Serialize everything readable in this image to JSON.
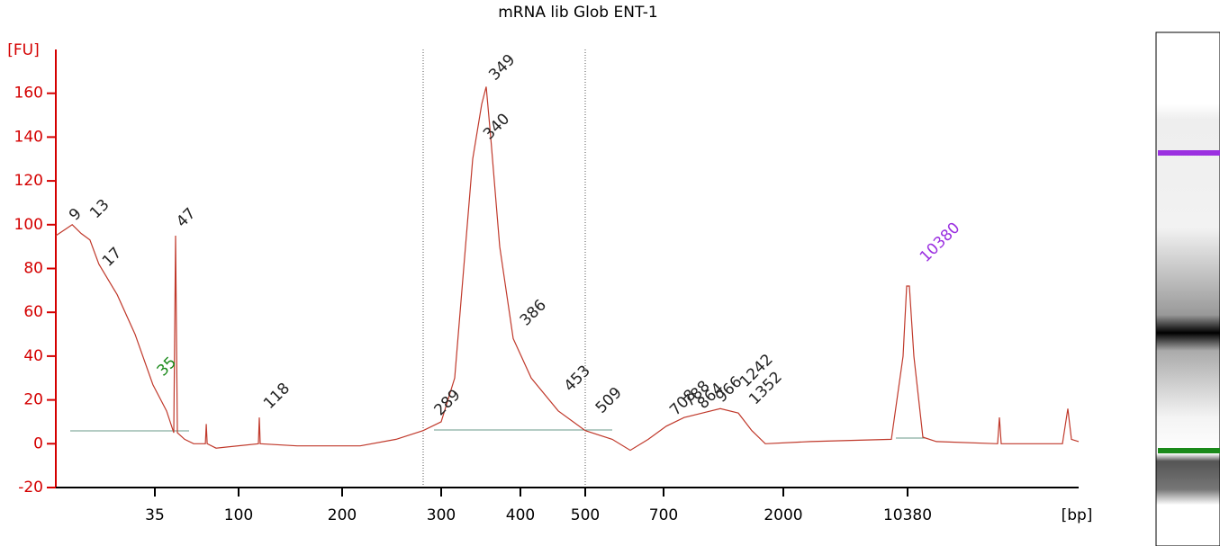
{
  "chart_data": {
    "type": "line",
    "title": "mRNA lib Glob ENT-1",
    "y_label": "[FU]",
    "x_label": "[bp]",
    "color": "#c0392b",
    "axis_color": "#d40000",
    "xlim": [
      15,
      17000
    ],
    "xticks": [
      35,
      100,
      200,
      300,
      400,
      500,
      700,
      2000,
      10380
    ],
    "ylim": [
      -20,
      180
    ],
    "yticks": [
      -20,
      0,
      20,
      40,
      60,
      80,
      100,
      120,
      140,
      160
    ],
    "x": [
      15,
      18.3,
      20.1,
      21.9,
      23.7,
      27.4,
      31,
      34.6,
      44.1,
      49.7,
      51.1,
      52.5,
      58.1,
      65.1,
      74.2,
      74.9,
      75.6,
      82.5,
      119.1,
      120,
      120.9,
      156.5,
      218.2,
      254.5,
      281.8,
      300,
      317,
      328.4,
      339.8,
      351.1,
      356.8,
      362.5,
      373.9,
      390.9,
      416.7,
      458.3,
      500,
      569,
      615,
      660.9,
      729,
      924.8,
      1120,
      1315.8,
      1511.4,
      1658,
      1804.6,
      3821,
      9286,
      10076,
      10319,
      10450,
      10624,
      10972,
      11495,
      13864,
      13934,
      14003,
      16373,
      16582,
      16721,
      17000
    ],
    "values": [
      95,
      100,
      96,
      93,
      82,
      68,
      50,
      27,
      15,
      5,
      95,
      5,
      2,
      0,
      0,
      9,
      0,
      -2,
      0,
      12,
      0,
      -1,
      -1,
      2,
      6,
      10,
      30,
      80,
      130,
      155,
      163,
      140,
      90,
      48,
      30,
      15,
      6,
      2,
      -3,
      2,
      8,
      12,
      14,
      16,
      14,
      6,
      0,
      1,
      2,
      40,
      72,
      72,
      40,
      3,
      1,
      0,
      12,
      0,
      0,
      16,
      2,
      1
    ],
    "annotations": [
      {
        "text": "9",
        "x": 18.3,
        "y": 103,
        "color": "#222"
      },
      {
        "text": "13",
        "x": 22.5,
        "y": 104,
        "color": "#222"
      },
      {
        "text": "17",
        "x": 25,
        "y": 82,
        "color": "#222"
      },
      {
        "text": "35",
        "x": 39,
        "y": 32,
        "color": "#1a8a1a"
      },
      {
        "text": "47",
        "x": 54,
        "y": 100,
        "color": "#222"
      },
      {
        "text": "118",
        "x": 127,
        "y": 17,
        "color": "#222"
      },
      {
        "text": "289",
        "x": 296,
        "y": 14,
        "color": "#222"
      },
      {
        "text": "340",
        "x": 357,
        "y": 140,
        "color": "#222"
      },
      {
        "text": "349",
        "x": 364,
        "y": 167,
        "color": "#222"
      },
      {
        "text": "386",
        "x": 404,
        "y": 55,
        "color": "#222"
      },
      {
        "text": "453",
        "x": 472,
        "y": 25,
        "color": "#222"
      },
      {
        "text": "509",
        "x": 534,
        "y": 15,
        "color": "#222"
      },
      {
        "text": "708",
        "x": 800,
        "y": 14,
        "color": "#222"
      },
      {
        "text": "788",
        "x": 950,
        "y": 18,
        "color": "#222"
      },
      {
        "text": "864",
        "x": 1100,
        "y": 17,
        "color": "#222"
      },
      {
        "text": "966",
        "x": 1300,
        "y": 20,
        "color": "#222"
      },
      {
        "text": "1242",
        "x": 1560,
        "y": 27,
        "color": "#222"
      },
      {
        "text": "1352",
        "x": 1660,
        "y": 19,
        "color": "#222"
      },
      {
        "text": "10380",
        "x": 10972,
        "y": 84,
        "color": "#9b30e0"
      }
    ]
  }
}
